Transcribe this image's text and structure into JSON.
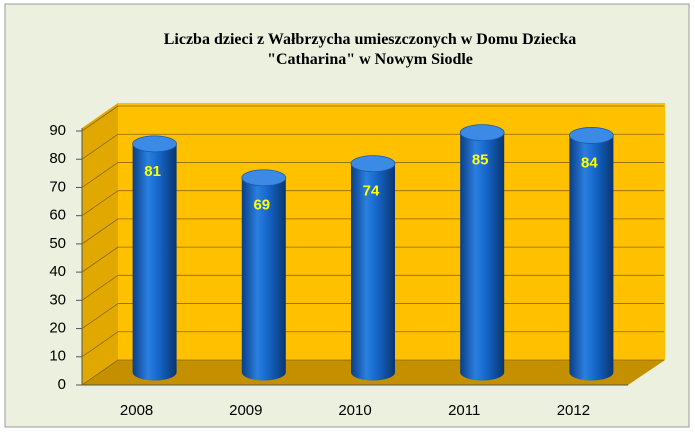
{
  "chart_data": {
    "type": "bar",
    "title": "Liczba dzieci z Wałbrzycha  umieszczonych w Domu Dziecka \"Catharina\" w Nowym Siodle",
    "categories": [
      "2008",
      "2009",
      "2010",
      "2011",
      "2012"
    ],
    "values": [
      81,
      69,
      74,
      85,
      84
    ],
    "color": "#1f6fd0",
    "ylim": [
      0,
      90
    ],
    "yticks": [
      0,
      10,
      20,
      30,
      40,
      50,
      60,
      70,
      80,
      90
    ],
    "grid": true
  }
}
